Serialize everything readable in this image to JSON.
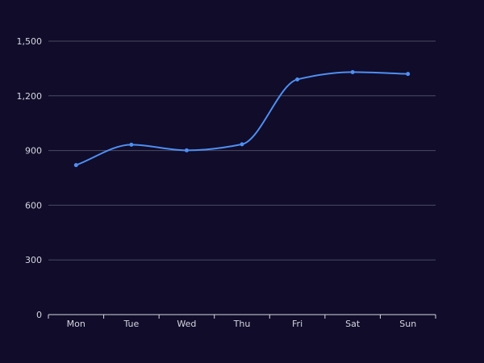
{
  "colors": {
    "background": "#100c2a",
    "grid": "#4a4a63",
    "axis": "#d6d6e0",
    "line": "#4f8ff2",
    "text": "#d6d6e0"
  },
  "chart_data": {
    "type": "line",
    "categories": [
      "Mon",
      "Tue",
      "Wed",
      "Thu",
      "Fri",
      "Sat",
      "Sun"
    ],
    "series": [
      {
        "values": [
          820,
          932,
          901,
          934,
          1290,
          1330,
          1320
        ],
        "smooth": true
      }
    ],
    "ylim": [
      0,
      1500
    ],
    "yticks": [
      0,
      300,
      600,
      900,
      1200,
      1500
    ],
    "ytick_labels": [
      "0",
      "300",
      "600",
      "900",
      "1,200",
      "1,500"
    ],
    "grid": true,
    "legend": false,
    "title": "",
    "xlabel": "",
    "ylabel": ""
  }
}
